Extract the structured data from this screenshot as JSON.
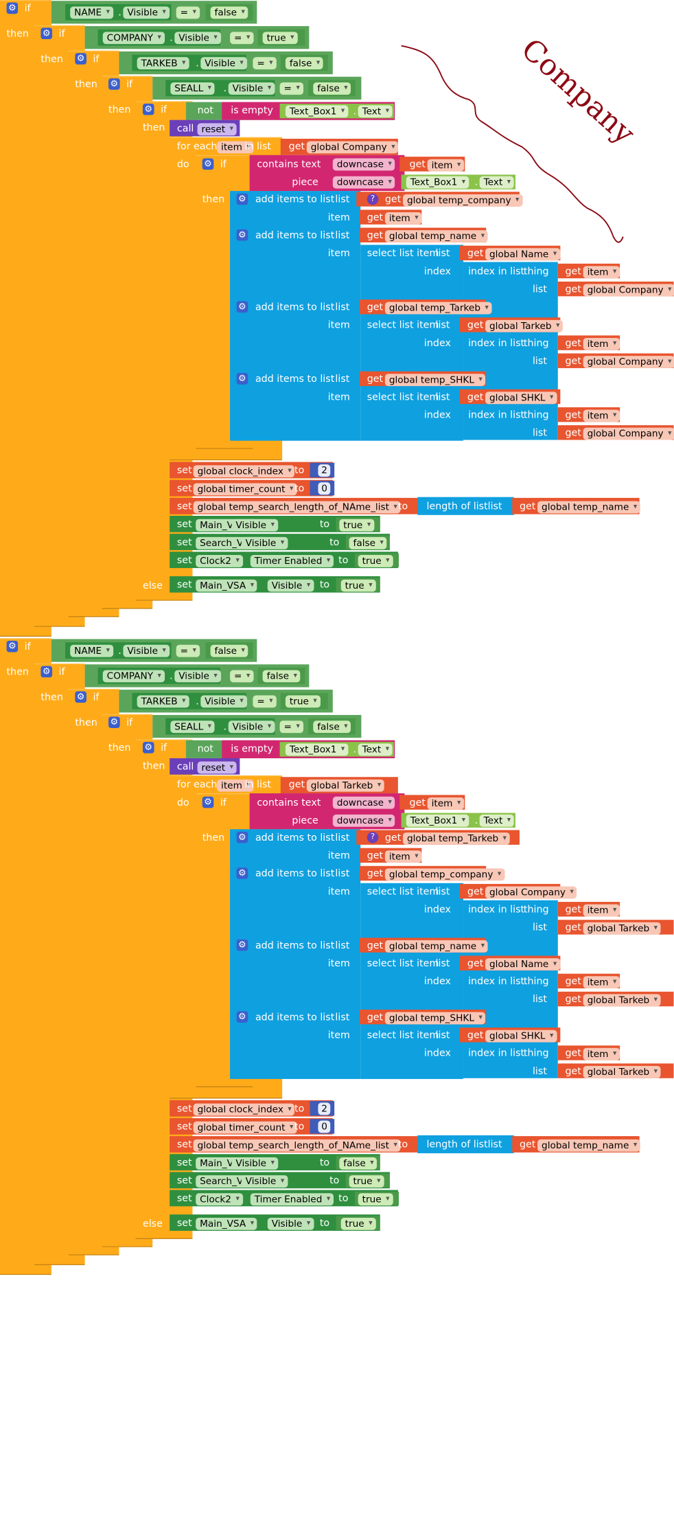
{
  "kw": {
    "if": "if",
    "then": "then",
    "do": "do",
    "else": "else",
    "not": "not",
    "is_empty": "is empty",
    "call": "call",
    "for_each": "for each",
    "in_list": "in list",
    "get": "get",
    "set": "set",
    "to": "to",
    "eq": "=",
    "dot": ".",
    "contains_text": "contains text",
    "piece": "piece",
    "downcase": "downcase",
    "add_items": "add items to list",
    "list": "list",
    "item": "item",
    "select_list_item": "select list item",
    "index": "index",
    "index_in_list": "index in list",
    "thing": "thing",
    "length_of_list": "length of list",
    "q": "?",
    "gear": "⚙"
  },
  "comp": {
    "NAME": "NAME",
    "COMPANY": "COMPANY",
    "TARKEB": "TARKEB",
    "SEALL": "SEALL",
    "Text_Box1": "Text_Box1",
    "Main_VSA": "Main_VSA",
    "Search_VSA": "Search_VSA",
    "Clock2": "Clock2",
    "Visible": "Visible",
    "Text": "Text",
    "TimerEnabled": "Timer Enabled"
  },
  "vals": {
    "true": "true",
    "false": "false",
    "reset": "reset",
    "two": "2",
    "zero": "0",
    "item_var": "item"
  },
  "g": {
    "Company": "global Company",
    "Tarkeb": "global Tarkeb",
    "Name": "global Name",
    "SHKL": "global SHKL",
    "temp_company": "global temp_company",
    "temp_Tarkeb": "global temp_Tarkeb",
    "temp_name": "global temp_name",
    "temp_SHKL": "global temp_SHKL",
    "clock_index": "global clock_index",
    "timer_count": "global timer_count",
    "temp_search_len": "global temp_search_length_of_NAme_list"
  },
  "blocks": [
    {
      "name_vis": "false",
      "company_vis": "true",
      "tarkeb_vis": "false",
      "seall_vis": "false",
      "loop_list": "global Company",
      "add1": "global temp_company",
      "add2": "global temp_name",
      "sel2": "global Name",
      "add3": "global temp_Tarkeb",
      "sel3": "global Tarkeb",
      "add4": "global temp_SHKL",
      "sel4": "global SHKL",
      "idx_list": "global Company",
      "main_vsa": "true",
      "search_vsa": "false",
      "clock2": "true",
      "else_main": "true"
    },
    {
      "name_vis": "false",
      "company_vis": "false",
      "tarkeb_vis": "true",
      "seall_vis": "false",
      "loop_list": "global Tarkeb",
      "add1": "global temp_Tarkeb",
      "add2": "global temp_company",
      "sel2": "global Company",
      "add3": "global temp_name",
      "sel3": "global Name",
      "add4": "global temp_SHKL",
      "sel4": "global SHKL",
      "idx_list": "global Tarkeb",
      "main_vsa": "false",
      "search_vsa": "true",
      "clock2": "true",
      "else_main": "true"
    }
  ],
  "annotation": {
    "text": "Company",
    "color": "#8b0a14"
  }
}
